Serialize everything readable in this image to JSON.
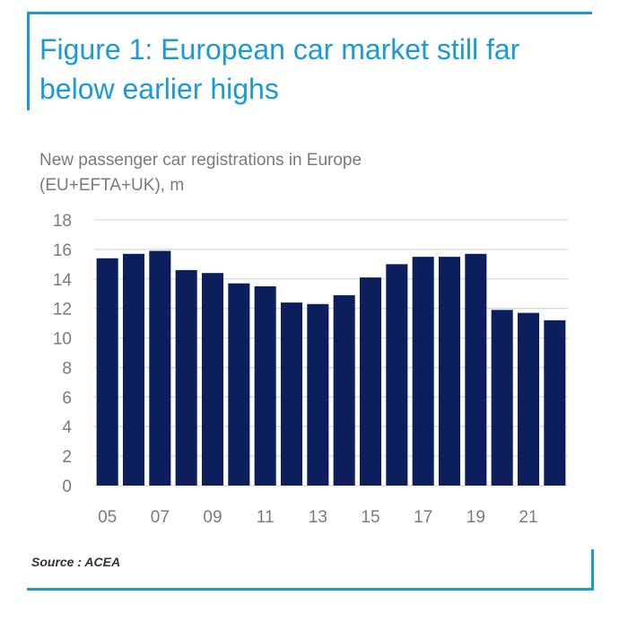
{
  "header": {
    "title": "Figure 1: European car market still far below earlier highs"
  },
  "chart_data": {
    "type": "bar",
    "title": "Figure 1: European car market still far below earlier highs",
    "subtitle_lines": [
      "New passenger car registrations in Europe",
      "(EU+EFTA+UK), m"
    ],
    "xlabel": "",
    "ylabel": "",
    "ylim": [
      0,
      18
    ],
    "yticks": [
      0,
      2,
      4,
      6,
      8,
      10,
      12,
      14,
      16,
      18
    ],
    "grid": true,
    "categories": [
      "05",
      "06",
      "07",
      "08",
      "09",
      "10",
      "11",
      "12",
      "13",
      "14",
      "15",
      "16",
      "17",
      "18",
      "19",
      "20",
      "21",
      "22"
    ],
    "xtick_labels": [
      "05",
      "07",
      "09",
      "11",
      "13",
      "15",
      "17",
      "19",
      "21"
    ],
    "values": [
      15.4,
      15.7,
      15.9,
      14.6,
      14.4,
      13.7,
      13.5,
      12.4,
      12.3,
      12.9,
      14.1,
      15.0,
      15.5,
      15.5,
      15.7,
      11.9,
      11.7,
      11.2
    ],
    "bar_color": "#0c1f5c",
    "grid_color": "#d9d9d9",
    "tick_color": "#7a7a7a"
  },
  "footer": {
    "source": "Source : ACEA"
  },
  "colors": {
    "accent": "#1a9ad6"
  }
}
